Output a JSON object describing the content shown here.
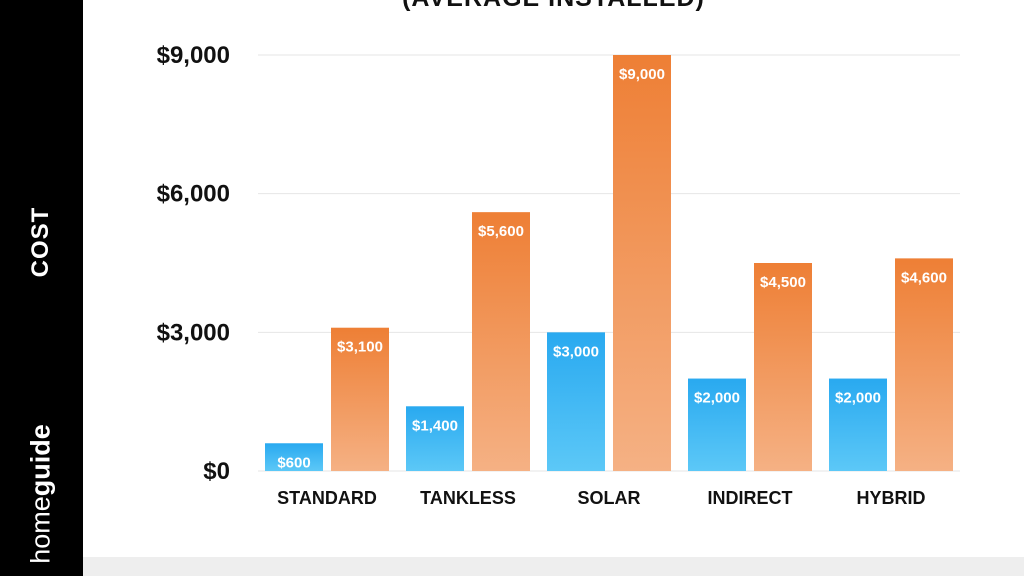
{
  "chart_data": {
    "type": "bar",
    "title": "(AVERAGE INSTALLED)",
    "ylabel": "COST",
    "xlabel": "",
    "categories": [
      "STANDARD",
      "TANKLESS",
      "SOLAR",
      "INDIRECT",
      "HYBRID"
    ],
    "series": [
      {
        "values": [
          600,
          1400,
          3000,
          2000,
          2000
        ],
        "labels": [
          "$600",
          "$1,400",
          "$3,000",
          "$2,000",
          "$2,000"
        ]
      },
      {
        "values": [
          3100,
          5600,
          9000,
          4500,
          4600
        ],
        "labels": [
          "$3,100",
          "$5,600",
          "$9,000",
          "$4,500",
          "$4,600"
        ]
      }
    ],
    "yticks": [
      0,
      3000,
      6000,
      9000
    ],
    "ytick_labels": [
      "$0",
      "$3,000",
      "$6,000",
      "$9,000"
    ],
    "ylim": [
      0,
      9000
    ],
    "grid": true,
    "colors": {
      "series0_top": "#29a9f0",
      "series0_bottom": "#5cc8f7",
      "series1_top": "#ee7f35",
      "series1_bottom": "#f5b184",
      "grid": "#e6e6e6"
    }
  },
  "brand": {
    "part1": "home",
    "part2": "guide"
  }
}
